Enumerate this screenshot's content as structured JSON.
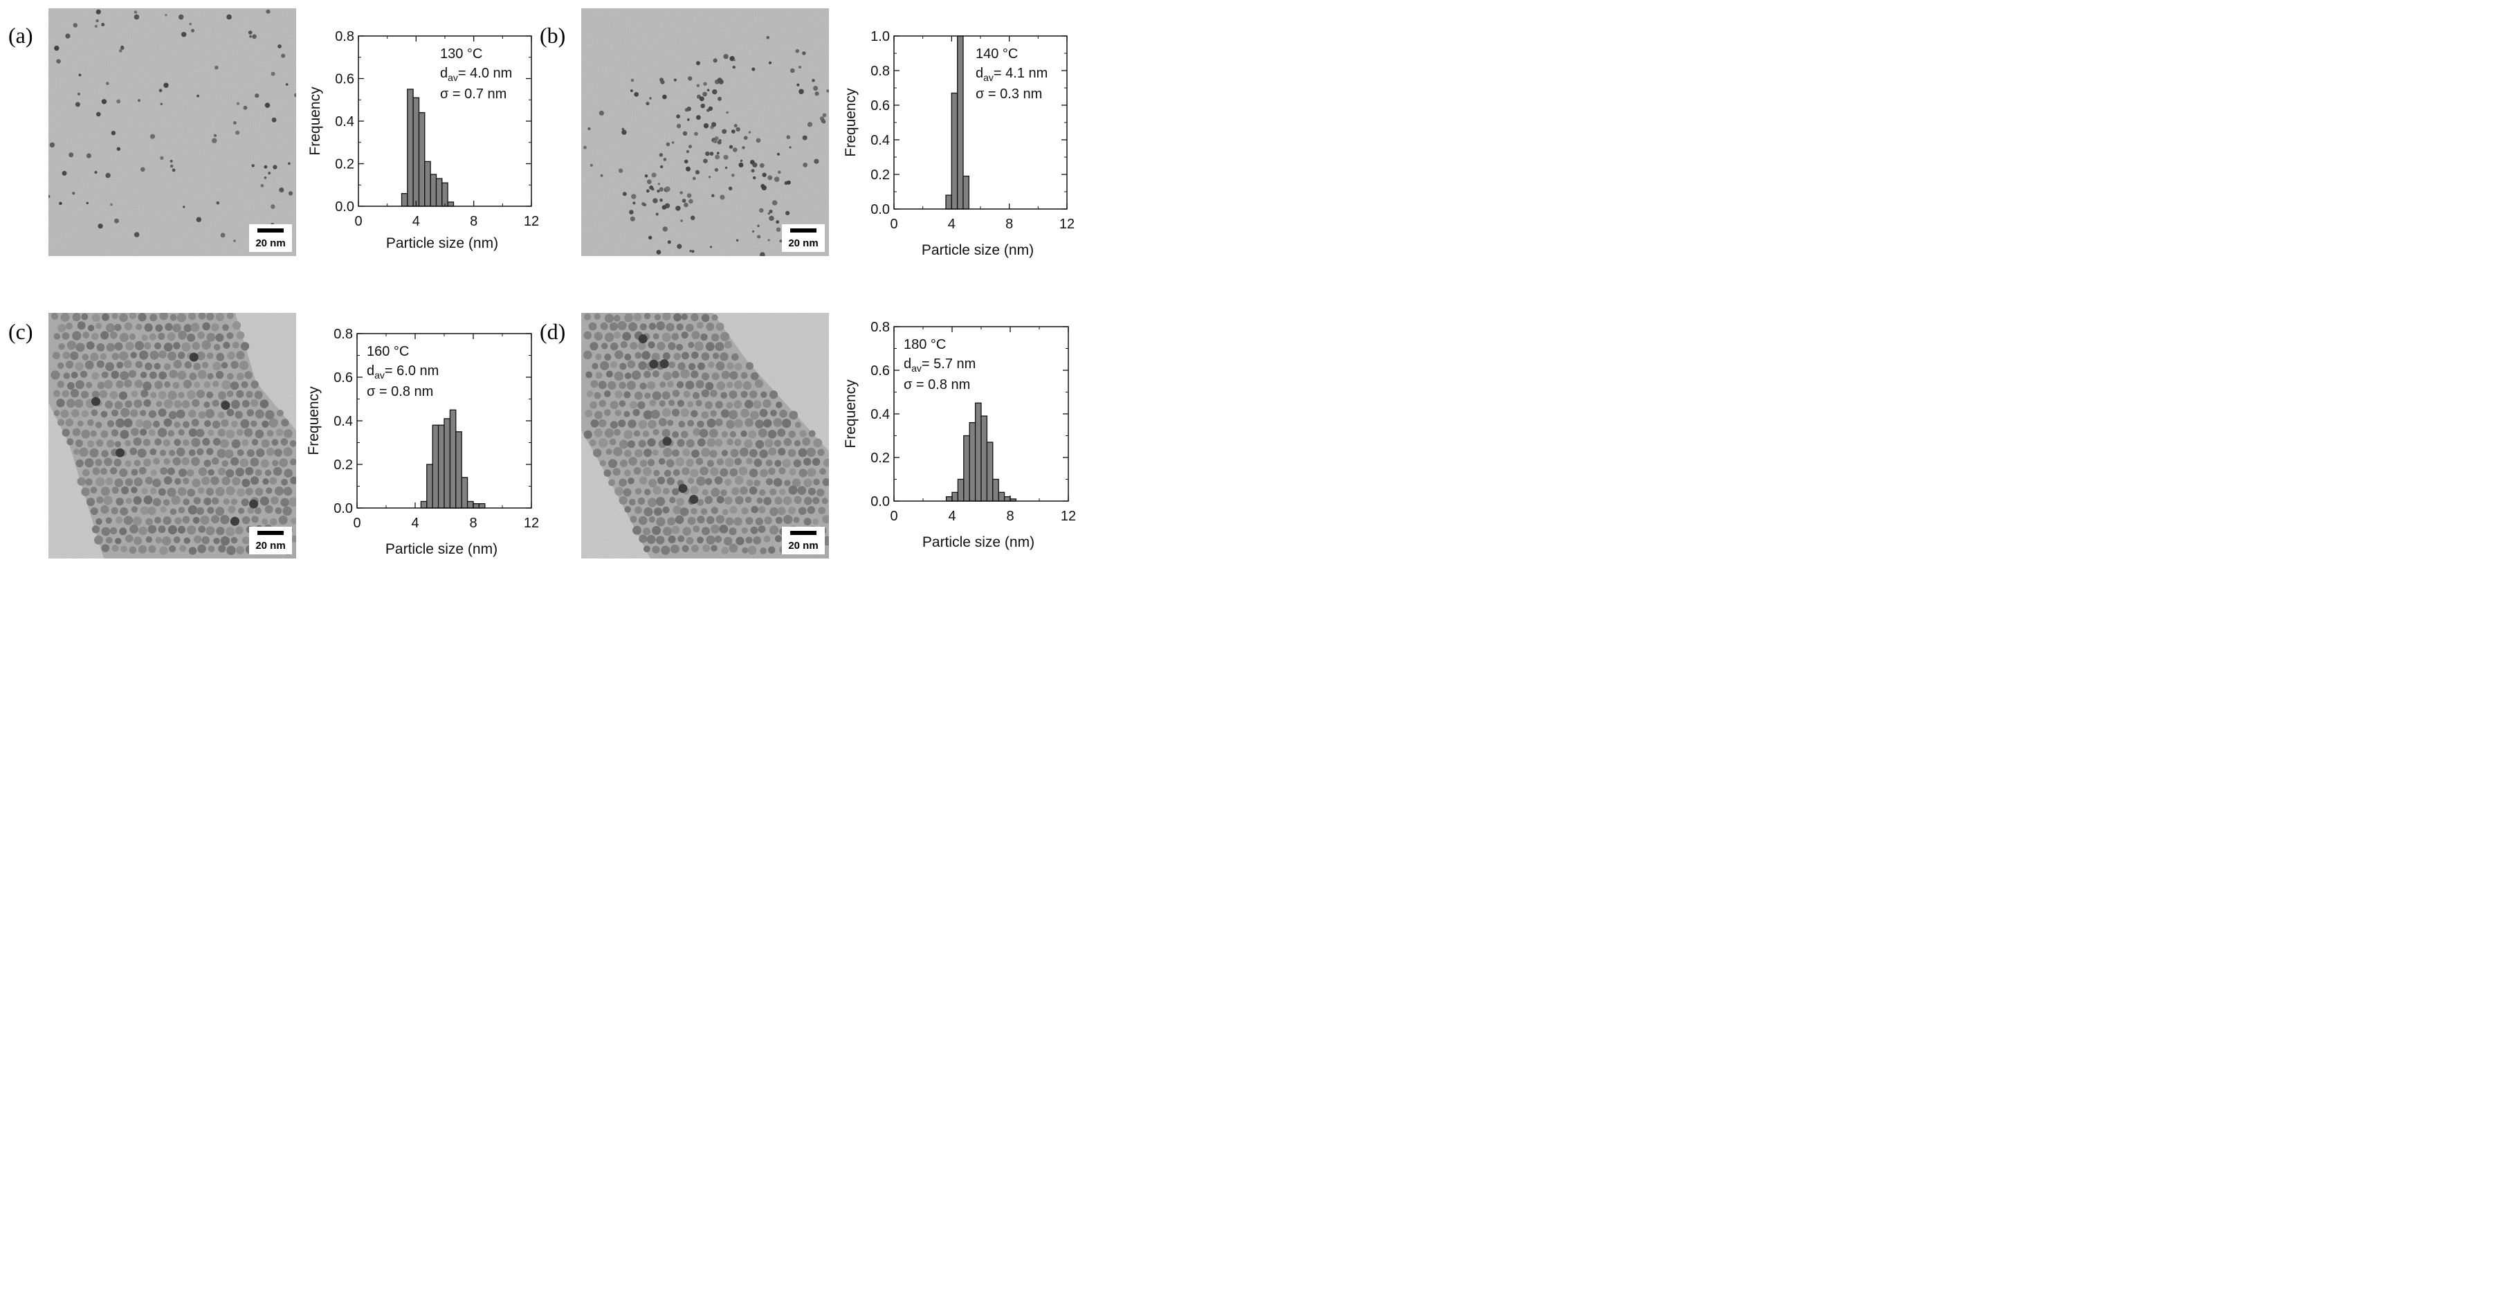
{
  "panels": [
    {
      "label": "(a)",
      "tem": {
        "scale_bar": "20 nm",
        "style": "sparse-small-particles"
      },
      "chart_data": {
        "type": "bar",
        "xlabel": "Particle size (nm)",
        "ylabel": "Frequency",
        "xlim": [
          0,
          12
        ],
        "ylim": [
          0,
          0.8
        ],
        "xticks": [
          "0",
          "4",
          "8",
          "12"
        ],
        "yticks": [
          "0.0",
          "0.2",
          "0.4",
          "0.6",
          "0.8"
        ],
        "bin_width": 0.4,
        "bins": [
          {
            "x": 3.0,
            "y": 0.06
          },
          {
            "x": 3.4,
            "y": 0.55
          },
          {
            "x": 3.8,
            "y": 0.51
          },
          {
            "x": 4.2,
            "y": 0.44
          },
          {
            "x": 4.6,
            "y": 0.21
          },
          {
            "x": 5.0,
            "y": 0.15
          },
          {
            "x": 5.4,
            "y": 0.13
          },
          {
            "x": 5.8,
            "y": 0.11
          },
          {
            "x": 6.2,
            "y": 0.02
          }
        ],
        "annotation": {
          "temp": "130 °C",
          "d_main": "d",
          "d_sub": "av",
          "d_value": "= 4.0 nm",
          "sigma": "σ   = 0.7 nm",
          "position": "top-right"
        }
      }
    },
    {
      "label": "(b)",
      "tem": {
        "scale_bar": "20 nm",
        "style": "clustered-small-particles"
      },
      "chart_data": {
        "type": "bar",
        "xlabel": "Particle size (nm)",
        "ylabel": "Frequency",
        "xlim": [
          0,
          12
        ],
        "ylim": [
          0,
          1.0
        ],
        "xticks": [
          "0",
          "4",
          "8",
          "12"
        ],
        "yticks": [
          "0.0",
          "0.2",
          "0.4",
          "0.6",
          "0.8",
          "1.0"
        ],
        "bin_width": 0.4,
        "bins": [
          {
            "x": 3.6,
            "y": 0.08
          },
          {
            "x": 4.0,
            "y": 0.67
          },
          {
            "x": 4.4,
            "y": 1.0
          },
          {
            "x": 4.8,
            "y": 0.19
          }
        ],
        "annotation": {
          "temp": "140 °C",
          "d_main": "d",
          "d_sub": "av",
          "d_value": "= 4.1 nm",
          "sigma": "σ   = 0.3 nm",
          "position": "top-right"
        }
      }
    },
    {
      "label": "(c)",
      "tem": {
        "scale_bar": "20 nm",
        "style": "dense-monolayer"
      },
      "chart_data": {
        "type": "bar",
        "xlabel": "Particle size (nm)",
        "ylabel": "Frequency",
        "xlim": [
          0,
          12
        ],
        "ylim": [
          0,
          0.8
        ],
        "xticks": [
          "0",
          "4",
          "8",
          "12"
        ],
        "yticks": [
          "0.0",
          "0.2",
          "0.4",
          "0.6",
          "0.8"
        ],
        "bin_width": 0.4,
        "bins": [
          {
            "x": 4.4,
            "y": 0.03
          },
          {
            "x": 4.8,
            "y": 0.2
          },
          {
            "x": 5.2,
            "y": 0.38
          },
          {
            "x": 5.6,
            "y": 0.38
          },
          {
            "x": 6.0,
            "y": 0.41
          },
          {
            "x": 6.4,
            "y": 0.45
          },
          {
            "x": 6.8,
            "y": 0.35
          },
          {
            "x": 7.2,
            "y": 0.14
          },
          {
            "x": 7.6,
            "y": 0.03
          },
          {
            "x": 8.0,
            "y": 0.02
          },
          {
            "x": 8.4,
            "y": 0.02
          }
        ],
        "annotation": {
          "temp": "160 °C",
          "d_main": "d",
          "d_sub": "av",
          "d_value": "= 6.0 nm",
          "sigma": "σ   = 0.8 nm",
          "position": "top-left"
        }
      }
    },
    {
      "label": "(d)",
      "tem": {
        "scale_bar": "20 nm",
        "style": "dense-monolayer-band"
      },
      "chart_data": {
        "type": "bar",
        "xlabel": "Particle size (nm)",
        "ylabel": "Frequency",
        "xlim": [
          0,
          12
        ],
        "ylim": [
          0,
          0.8
        ],
        "xticks": [
          "0",
          "4",
          "8",
          "12"
        ],
        "yticks": [
          "0.0",
          "0.2",
          "0.4",
          "0.6",
          "0.8"
        ],
        "bin_width": 0.4,
        "bins": [
          {
            "x": 3.6,
            "y": 0.02
          },
          {
            "x": 4.0,
            "y": 0.04
          },
          {
            "x": 4.4,
            "y": 0.1
          },
          {
            "x": 4.8,
            "y": 0.3
          },
          {
            "x": 5.2,
            "y": 0.36
          },
          {
            "x": 5.6,
            "y": 0.45
          },
          {
            "x": 6.0,
            "y": 0.39
          },
          {
            "x": 6.4,
            "y": 0.27
          },
          {
            "x": 6.8,
            "y": 0.1
          },
          {
            "x": 7.2,
            "y": 0.04
          },
          {
            "x": 7.6,
            "y": 0.02
          },
          {
            "x": 8.0,
            "y": 0.01
          }
        ],
        "annotation": {
          "temp": "180 °C",
          "d_main": "d",
          "d_sub": "av",
          "d_value": "= 5.7 nm",
          "sigma": "σ   = 0.8 nm",
          "position": "top-left"
        }
      }
    }
  ],
  "colors": {
    "bar_fill": "#808080",
    "bar_stroke": "#111111",
    "axis": "#111111",
    "tem_background": "#b8b8b8",
    "particle": "#3a3a3a",
    "scale_box": "#ffffff"
  }
}
